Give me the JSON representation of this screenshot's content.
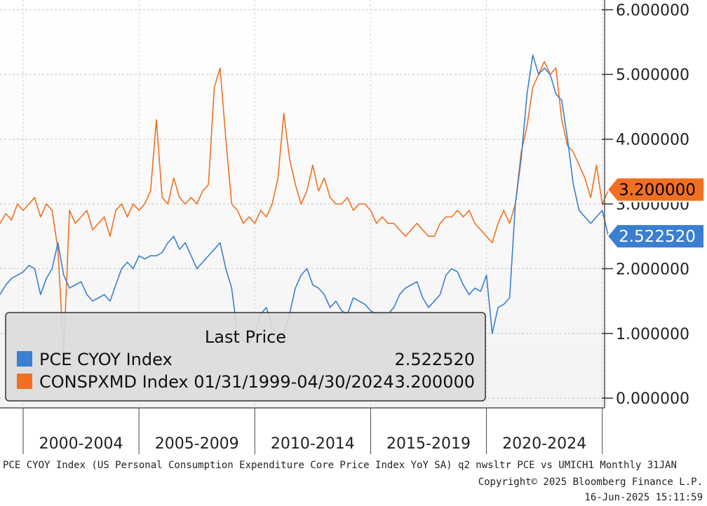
{
  "chart_data": {
    "type": "line",
    "x_categories": [
      "2000-2004",
      "2005-2009",
      "2010-2014",
      "2015-2019",
      "2020-2024"
    ],
    "xlim": [
      1999.0,
      2025.1
    ],
    "ylim": [
      -0.15,
      6.15
    ],
    "y_ticks": [
      "0.000000",
      "1.000000",
      "2.000000",
      "3.000000",
      "4.000000",
      "5.000000",
      "6.000000"
    ],
    "y_tick_values": [
      0,
      1,
      2,
      3,
      4,
      5,
      6
    ],
    "grid": true,
    "legend_placement": "bottom-left",
    "series": [
      {
        "name": "PCE CYOY Index",
        "color": "#3a7fd0",
        "last_price": "2.522520",
        "last_value": 2.52252,
        "points": [
          [
            1999.0,
            1.6
          ],
          [
            1999.25,
            1.75
          ],
          [
            1999.5,
            1.85
          ],
          [
            1999.75,
            1.9
          ],
          [
            2000.0,
            1.95
          ],
          [
            2000.25,
            2.05
          ],
          [
            2000.5,
            2.0
          ],
          [
            2000.75,
            1.6
          ],
          [
            2001.0,
            1.85
          ],
          [
            2001.25,
            2.0
          ],
          [
            2001.5,
            2.4
          ],
          [
            2001.75,
            1.9
          ],
          [
            2002.0,
            1.7
          ],
          [
            2002.25,
            1.75
          ],
          [
            2002.5,
            1.8
          ],
          [
            2002.75,
            1.6
          ],
          [
            2003.0,
            1.5
          ],
          [
            2003.25,
            1.55
          ],
          [
            2003.5,
            1.6
          ],
          [
            2003.75,
            1.5
          ],
          [
            2004.0,
            1.75
          ],
          [
            2004.25,
            2.0
          ],
          [
            2004.5,
            2.1
          ],
          [
            2004.75,
            2.0
          ],
          [
            2005.0,
            2.2
          ],
          [
            2005.25,
            2.15
          ],
          [
            2005.5,
            2.2
          ],
          [
            2005.75,
            2.2
          ],
          [
            2006.0,
            2.25
          ],
          [
            2006.25,
            2.4
          ],
          [
            2006.5,
            2.5
          ],
          [
            2006.75,
            2.3
          ],
          [
            2007.0,
            2.4
          ],
          [
            2007.25,
            2.2
          ],
          [
            2007.5,
            2.0
          ],
          [
            2007.75,
            2.1
          ],
          [
            2008.0,
            2.2
          ],
          [
            2008.25,
            2.3
          ],
          [
            2008.5,
            2.4
          ],
          [
            2008.75,
            2.0
          ],
          [
            2009.0,
            1.7
          ],
          [
            2009.25,
            1.0
          ],
          [
            2009.5,
            0.9
          ],
          [
            2009.75,
            0.85
          ],
          [
            2010.0,
            1.0
          ],
          [
            2010.25,
            1.3
          ],
          [
            2010.5,
            1.4
          ],
          [
            2010.75,
            1.1
          ],
          [
            2011.0,
            0.95
          ],
          [
            2011.25,
            1.0
          ],
          [
            2011.5,
            1.3
          ],
          [
            2011.75,
            1.7
          ],
          [
            2012.0,
            1.9
          ],
          [
            2012.25,
            2.0
          ],
          [
            2012.5,
            1.75
          ],
          [
            2012.75,
            1.7
          ],
          [
            2013.0,
            1.6
          ],
          [
            2013.25,
            1.4
          ],
          [
            2013.5,
            1.5
          ],
          [
            2013.75,
            1.35
          ],
          [
            2014.0,
            1.3
          ],
          [
            2014.25,
            1.55
          ],
          [
            2014.5,
            1.5
          ],
          [
            2014.75,
            1.45
          ],
          [
            2015.0,
            1.35
          ],
          [
            2015.25,
            1.3
          ],
          [
            2015.5,
            1.3
          ],
          [
            2015.75,
            1.3
          ],
          [
            2016.0,
            1.4
          ],
          [
            2016.25,
            1.6
          ],
          [
            2016.5,
            1.7
          ],
          [
            2016.75,
            1.75
          ],
          [
            2017.0,
            1.8
          ],
          [
            2017.25,
            1.55
          ],
          [
            2017.5,
            1.4
          ],
          [
            2017.75,
            1.5
          ],
          [
            2018.0,
            1.6
          ],
          [
            2018.25,
            1.9
          ],
          [
            2018.5,
            2.0
          ],
          [
            2018.75,
            1.95
          ],
          [
            2019.0,
            1.75
          ],
          [
            2019.25,
            1.6
          ],
          [
            2019.5,
            1.7
          ],
          [
            2019.75,
            1.65
          ],
          [
            2020.0,
            1.9
          ],
          [
            2020.25,
            1.0
          ],
          [
            2020.5,
            1.4
          ],
          [
            2020.75,
            1.45
          ],
          [
            2021.0,
            1.55
          ],
          [
            2021.25,
            3.0
          ],
          [
            2021.5,
            3.7
          ],
          [
            2021.75,
            4.7
          ],
          [
            2022.0,
            5.3
          ],
          [
            2022.25,
            5.0
          ],
          [
            2022.5,
            5.1
          ],
          [
            2022.75,
            5.0
          ],
          [
            2023.0,
            4.7
          ],
          [
            2023.25,
            4.6
          ],
          [
            2023.5,
            4.0
          ],
          [
            2023.75,
            3.3
          ],
          [
            2024.0,
            2.9
          ],
          [
            2024.25,
            2.8
          ],
          [
            2024.5,
            2.7
          ],
          [
            2024.75,
            2.8
          ],
          [
            2025.0,
            2.9
          ],
          [
            2025.25,
            2.52252
          ]
        ]
      },
      {
        "name": "CONSPXMD Index 01/31/1999-04/30/2024",
        "color": "#f07020",
        "last_price": "3.200000",
        "last_value": 3.2,
        "points": [
          [
            1999.0,
            2.7
          ],
          [
            1999.25,
            2.85
          ],
          [
            1999.5,
            2.75
          ],
          [
            1999.75,
            3.0
          ],
          [
            2000.0,
            2.9
          ],
          [
            2000.25,
            3.0
          ],
          [
            2000.5,
            3.1
          ],
          [
            2000.75,
            2.8
          ],
          [
            2001.0,
            3.0
          ],
          [
            2001.25,
            2.9
          ],
          [
            2001.5,
            2.3
          ],
          [
            2001.75,
            0.7
          ],
          [
            2002.0,
            2.9
          ],
          [
            2002.25,
            2.7
          ],
          [
            2002.5,
            2.8
          ],
          [
            2002.75,
            2.9
          ],
          [
            2003.0,
            2.6
          ],
          [
            2003.25,
            2.7
          ],
          [
            2003.5,
            2.8
          ],
          [
            2003.75,
            2.5
          ],
          [
            2004.0,
            2.9
          ],
          [
            2004.25,
            3.0
          ],
          [
            2004.5,
            2.8
          ],
          [
            2004.75,
            3.0
          ],
          [
            2005.0,
            2.9
          ],
          [
            2005.25,
            3.0
          ],
          [
            2005.5,
            3.2
          ],
          [
            2005.75,
            4.3
          ],
          [
            2006.0,
            3.1
          ],
          [
            2006.25,
            3.0
          ],
          [
            2006.5,
            3.4
          ],
          [
            2006.75,
            3.1
          ],
          [
            2007.0,
            3.0
          ],
          [
            2007.25,
            3.1
          ],
          [
            2007.5,
            3.0
          ],
          [
            2007.75,
            3.2
          ],
          [
            2008.0,
            3.3
          ],
          [
            2008.25,
            4.8
          ],
          [
            2008.5,
            5.1
          ],
          [
            2008.75,
            4.0
          ],
          [
            2009.0,
            3.0
          ],
          [
            2009.25,
            2.9
          ],
          [
            2009.5,
            2.7
          ],
          [
            2009.75,
            2.8
          ],
          [
            2010.0,
            2.7
          ],
          [
            2010.25,
            2.9
          ],
          [
            2010.5,
            2.8
          ],
          [
            2010.75,
            3.0
          ],
          [
            2011.0,
            3.4
          ],
          [
            2011.25,
            4.4
          ],
          [
            2011.5,
            3.7
          ],
          [
            2011.75,
            3.3
          ],
          [
            2012.0,
            3.0
          ],
          [
            2012.25,
            3.2
          ],
          [
            2012.5,
            3.6
          ],
          [
            2012.75,
            3.2
          ],
          [
            2013.0,
            3.4
          ],
          [
            2013.25,
            3.1
          ],
          [
            2013.5,
            3.0
          ],
          [
            2013.75,
            3.0
          ],
          [
            2014.0,
            3.1
          ],
          [
            2014.25,
            2.9
          ],
          [
            2014.5,
            3.0
          ],
          [
            2014.75,
            3.0
          ],
          [
            2015.0,
            2.9
          ],
          [
            2015.25,
            2.7
          ],
          [
            2015.5,
            2.8
          ],
          [
            2015.75,
            2.7
          ],
          [
            2016.0,
            2.7
          ],
          [
            2016.25,
            2.6
          ],
          [
            2016.5,
            2.5
          ],
          [
            2016.75,
            2.6
          ],
          [
            2017.0,
            2.7
          ],
          [
            2017.25,
            2.6
          ],
          [
            2017.5,
            2.5
          ],
          [
            2017.75,
            2.5
          ],
          [
            2018.0,
            2.7
          ],
          [
            2018.25,
            2.8
          ],
          [
            2018.5,
            2.8
          ],
          [
            2018.75,
            2.9
          ],
          [
            2019.0,
            2.8
          ],
          [
            2019.25,
            2.9
          ],
          [
            2019.5,
            2.7
          ],
          [
            2019.75,
            2.6
          ],
          [
            2020.0,
            2.5
          ],
          [
            2020.25,
            2.4
          ],
          [
            2020.5,
            2.7
          ],
          [
            2020.75,
            2.9
          ],
          [
            2021.0,
            2.7
          ],
          [
            2021.25,
            3.0
          ],
          [
            2021.5,
            3.8
          ],
          [
            2021.75,
            4.2
          ],
          [
            2022.0,
            4.8
          ],
          [
            2022.25,
            5.0
          ],
          [
            2022.5,
            5.2
          ],
          [
            2022.75,
            5.0
          ],
          [
            2023.0,
            5.1
          ],
          [
            2023.25,
            4.3
          ],
          [
            2023.5,
            3.9
          ],
          [
            2023.75,
            3.8
          ],
          [
            2024.0,
            3.6
          ],
          [
            2024.25,
            3.4
          ],
          [
            2024.5,
            3.1
          ],
          [
            2024.75,
            3.6
          ],
          [
            2025.0,
            3.0
          ],
          [
            2025.25,
            3.2
          ]
        ]
      }
    ],
    "legend": {
      "title": "Last Price",
      "entries": [
        {
          "label": "PCE CYOY Index",
          "value": "2.522520",
          "color": "#3a7fd0"
        },
        {
          "label": "CONSPXMD Index 01/31/1999-04/30/2024",
          "value": "3.200000",
          "color": "#f07020"
        }
      ]
    }
  },
  "footer": {
    "line1": "PCE CYOY Index (US Personal Consumption Expenditure Core Price Index YoY SA) q2 nwsltr PCE vs UMICH1  Monthly 31JAN",
    "line2": "Copyright© 2025 Bloomberg Finance L.P.",
    "line3": "16-Jun-2025 15:11:59"
  }
}
